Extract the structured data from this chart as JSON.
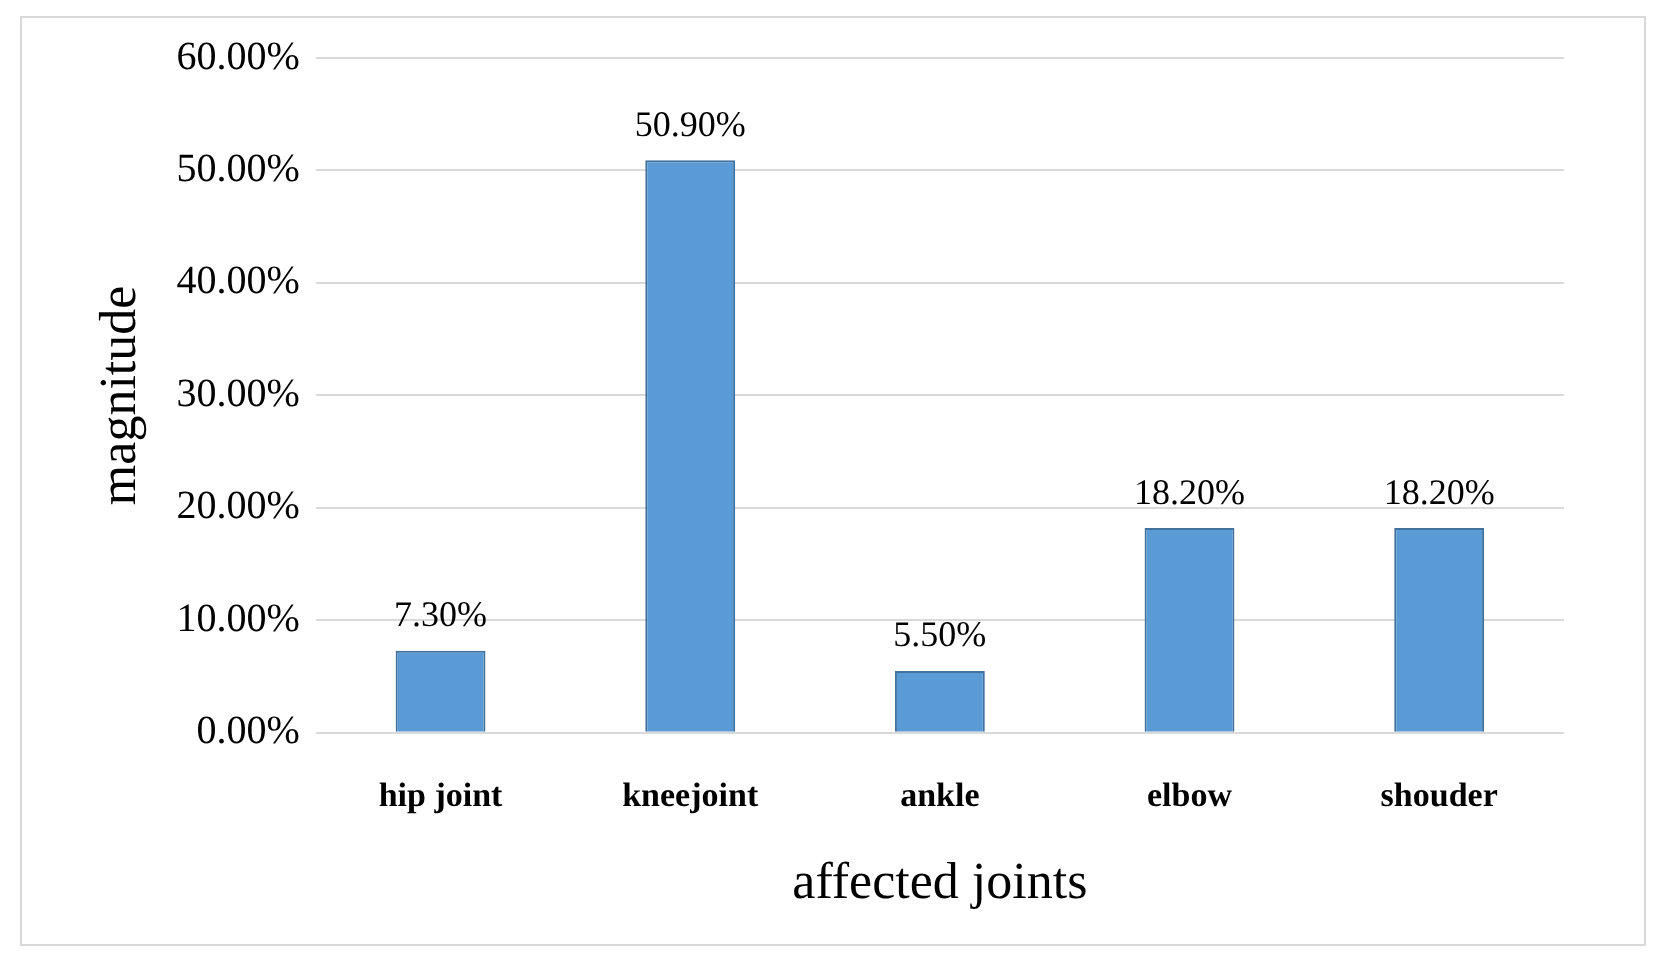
{
  "chart_data": {
    "type": "bar",
    "xlabel": "affected joints",
    "ylabel": "magnitude",
    "categories": [
      "hip joint",
      "kneejoint",
      "ankle",
      "elbow",
      "shouder"
    ],
    "values": [
      7.3,
      50.9,
      5.5,
      18.2,
      18.2
    ],
    "color": "#5b9bd5",
    "value_labels": [
      "7.30%",
      "50.90%",
      "5.50%",
      "18.20%",
      "18.20%"
    ],
    "ylim": [
      0,
      60
    ],
    "yticks": [
      {
        "value": 0,
        "label": "0.00%"
      },
      {
        "value": 10,
        "label": "10.00%"
      },
      {
        "value": 20,
        "label": "20.00%"
      },
      {
        "value": 30,
        "label": "30.00%"
      },
      {
        "value": 40,
        "label": "40.00%"
      },
      {
        "value": 50,
        "label": "50.00%"
      },
      {
        "value": 60,
        "label": "60.00%"
      }
    ],
    "grid": "y",
    "legend": false
  }
}
